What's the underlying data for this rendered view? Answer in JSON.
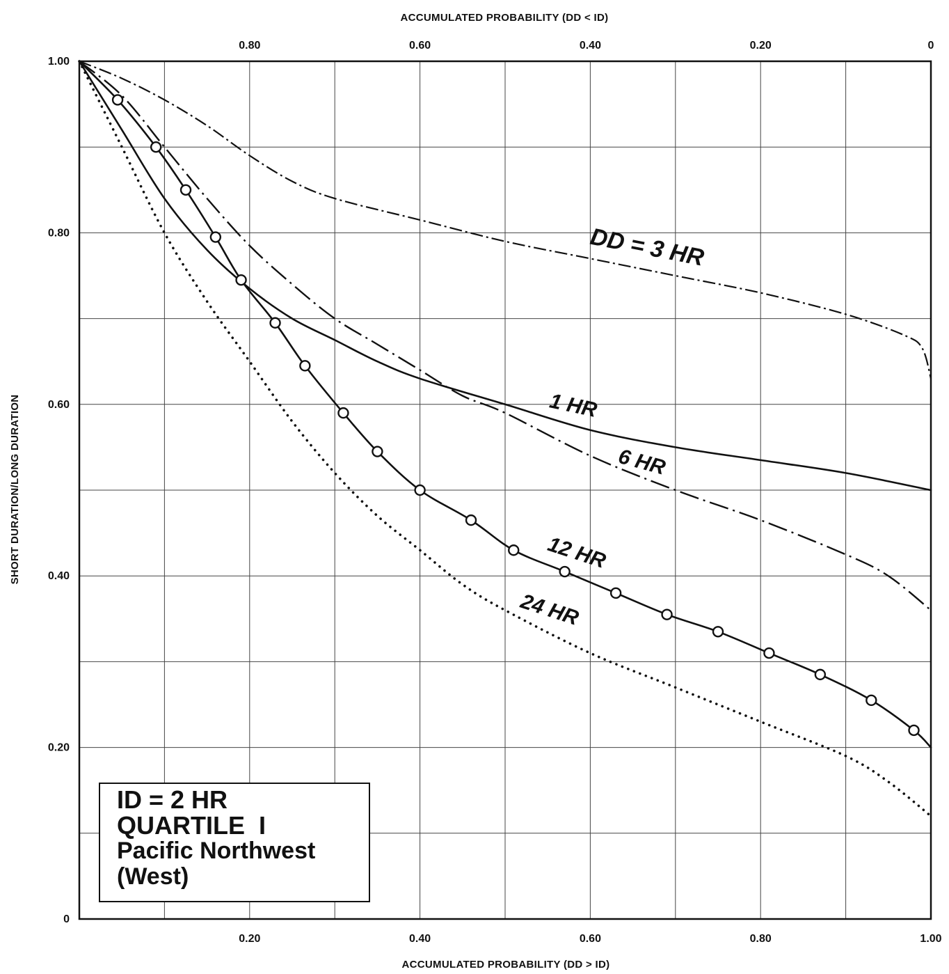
{
  "chart_data": {
    "type": "line",
    "xlabel_bottom": "ACCUMULATED PROBABILITY (DD > ID)",
    "xlabel_top": "ACCUMULATED PROBABILITY (DD < ID)",
    "ylabel": "SHORT DURATION/LONG DURATION",
    "xlim": [
      0,
      1.0
    ],
    "ylim": [
      0,
      1.0
    ],
    "grid": true,
    "x_ticks_bottom": [
      "0.20",
      "0.40",
      "0.60",
      "0.80",
      "1.00"
    ],
    "x_ticks_top": [
      "0.80",
      "0.60",
      "0.40",
      "0.20",
      "0"
    ],
    "y_ticks": [
      "0",
      "0.20",
      "0.40",
      "0.60",
      "0.80",
      "1.00"
    ],
    "series": [
      {
        "name": "DD = 3 HR",
        "style": "dash-dot",
        "x": [
          0,
          0.05,
          0.1,
          0.15,
          0.2,
          0.25,
          0.3,
          0.4,
          0.5,
          0.6,
          0.7,
          0.8,
          0.9,
          0.97,
          0.99,
          1.0
        ],
        "y": [
          1.0,
          0.98,
          0.955,
          0.925,
          0.89,
          0.86,
          0.84,
          0.815,
          0.79,
          0.77,
          0.75,
          0.73,
          0.705,
          0.68,
          0.665,
          0.63
        ]
      },
      {
        "name": "1 HR",
        "style": "solid",
        "x": [
          0,
          0.05,
          0.1,
          0.15,
          0.2,
          0.25,
          0.3,
          0.35,
          0.4,
          0.5,
          0.6,
          0.7,
          0.8,
          0.9,
          1.0
        ],
        "y": [
          1.0,
          0.92,
          0.84,
          0.78,
          0.735,
          0.7,
          0.675,
          0.65,
          0.63,
          0.6,
          0.57,
          0.55,
          0.535,
          0.52,
          0.5
        ]
      },
      {
        "name": "6 HR",
        "style": "long-dash-dot",
        "x": [
          0,
          0.05,
          0.1,
          0.15,
          0.2,
          0.25,
          0.3,
          0.35,
          0.4,
          0.45,
          0.5,
          0.6,
          0.7,
          0.8,
          0.9,
          0.95,
          1.0
        ],
        "y": [
          1.0,
          0.96,
          0.9,
          0.84,
          0.785,
          0.74,
          0.7,
          0.67,
          0.64,
          0.61,
          0.59,
          0.54,
          0.5,
          0.465,
          0.425,
          0.4,
          0.36
        ]
      },
      {
        "name": "12 HR",
        "style": "solid-circles",
        "x": [
          0,
          0.045,
          0.09,
          0.125,
          0.16,
          0.19,
          0.23,
          0.265,
          0.31,
          0.35,
          0.4,
          0.46,
          0.51,
          0.57,
          0.63,
          0.69,
          0.75,
          0.81,
          0.87,
          0.93,
          0.98,
          1.0
        ],
        "y": [
          1.0,
          0.955,
          0.9,
          0.85,
          0.795,
          0.745,
          0.695,
          0.645,
          0.59,
          0.545,
          0.5,
          0.465,
          0.43,
          0.405,
          0.38,
          0.355,
          0.335,
          0.31,
          0.285,
          0.255,
          0.22,
          0.2
        ]
      },
      {
        "name": "24 HR",
        "style": "dotted",
        "x": [
          0,
          0.05,
          0.1,
          0.15,
          0.2,
          0.25,
          0.3,
          0.35,
          0.4,
          0.45,
          0.5,
          0.6,
          0.7,
          0.8,
          0.9,
          0.95,
          1.0
        ],
        "y": [
          1.0,
          0.9,
          0.8,
          0.72,
          0.65,
          0.58,
          0.52,
          0.47,
          0.43,
          0.39,
          0.36,
          0.31,
          0.27,
          0.23,
          0.19,
          0.16,
          0.12
        ]
      }
    ]
  },
  "info_box": {
    "line1": "ID = 2 HR",
    "line2": "QUARTILE  I",
    "line3": "Pacific Northwest",
    "line4": "(West)"
  }
}
